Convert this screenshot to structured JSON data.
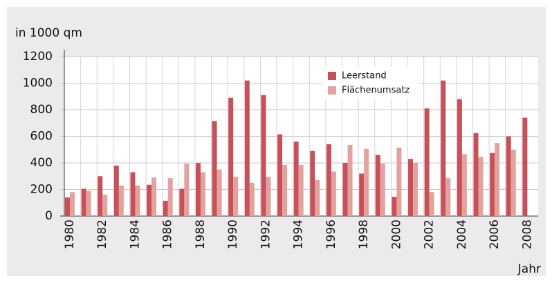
{
  "chart_data": {
    "type": "bar",
    "y_label": "in 1000 qm",
    "x_label": "Jahr",
    "categories": [
      "1980",
      null,
      "1982",
      null,
      "1984",
      null,
      "1986",
      null,
      "1988",
      null,
      "1990",
      null,
      "1992",
      null,
      "1994",
      null,
      "1996",
      null,
      "1998",
      null,
      "2000",
      null,
      "2002",
      null,
      "2004",
      null,
      "2006",
      null,
      "2008"
    ],
    "series": [
      {
        "name": "Leerstand",
        "color": "#c8505a",
        "values": [
          140,
          205,
          300,
          380,
          330,
          235,
          115,
          205,
          400,
          715,
          890,
          1020,
          910,
          615,
          560,
          490,
          540,
          400,
          320,
          460,
          145,
          430,
          810,
          1020,
          880,
          625,
          475,
          600,
          740
        ]
      },
      {
        "name": "Flächenumsatz",
        "color": "#e2a3a0",
        "values": [
          180,
          190,
          160,
          230,
          230,
          290,
          285,
          395,
          330,
          350,
          295,
          250,
          295,
          385,
          385,
          270,
          335,
          535,
          505,
          395,
          515,
          400,
          180,
          285,
          465,
          445,
          550,
          500,
          null
        ]
      }
    ],
    "ylim": [
      0,
      1200
    ],
    "yticks": [
      0,
      200,
      400,
      600,
      800,
      1000,
      1200
    ],
    "grid": true
  }
}
